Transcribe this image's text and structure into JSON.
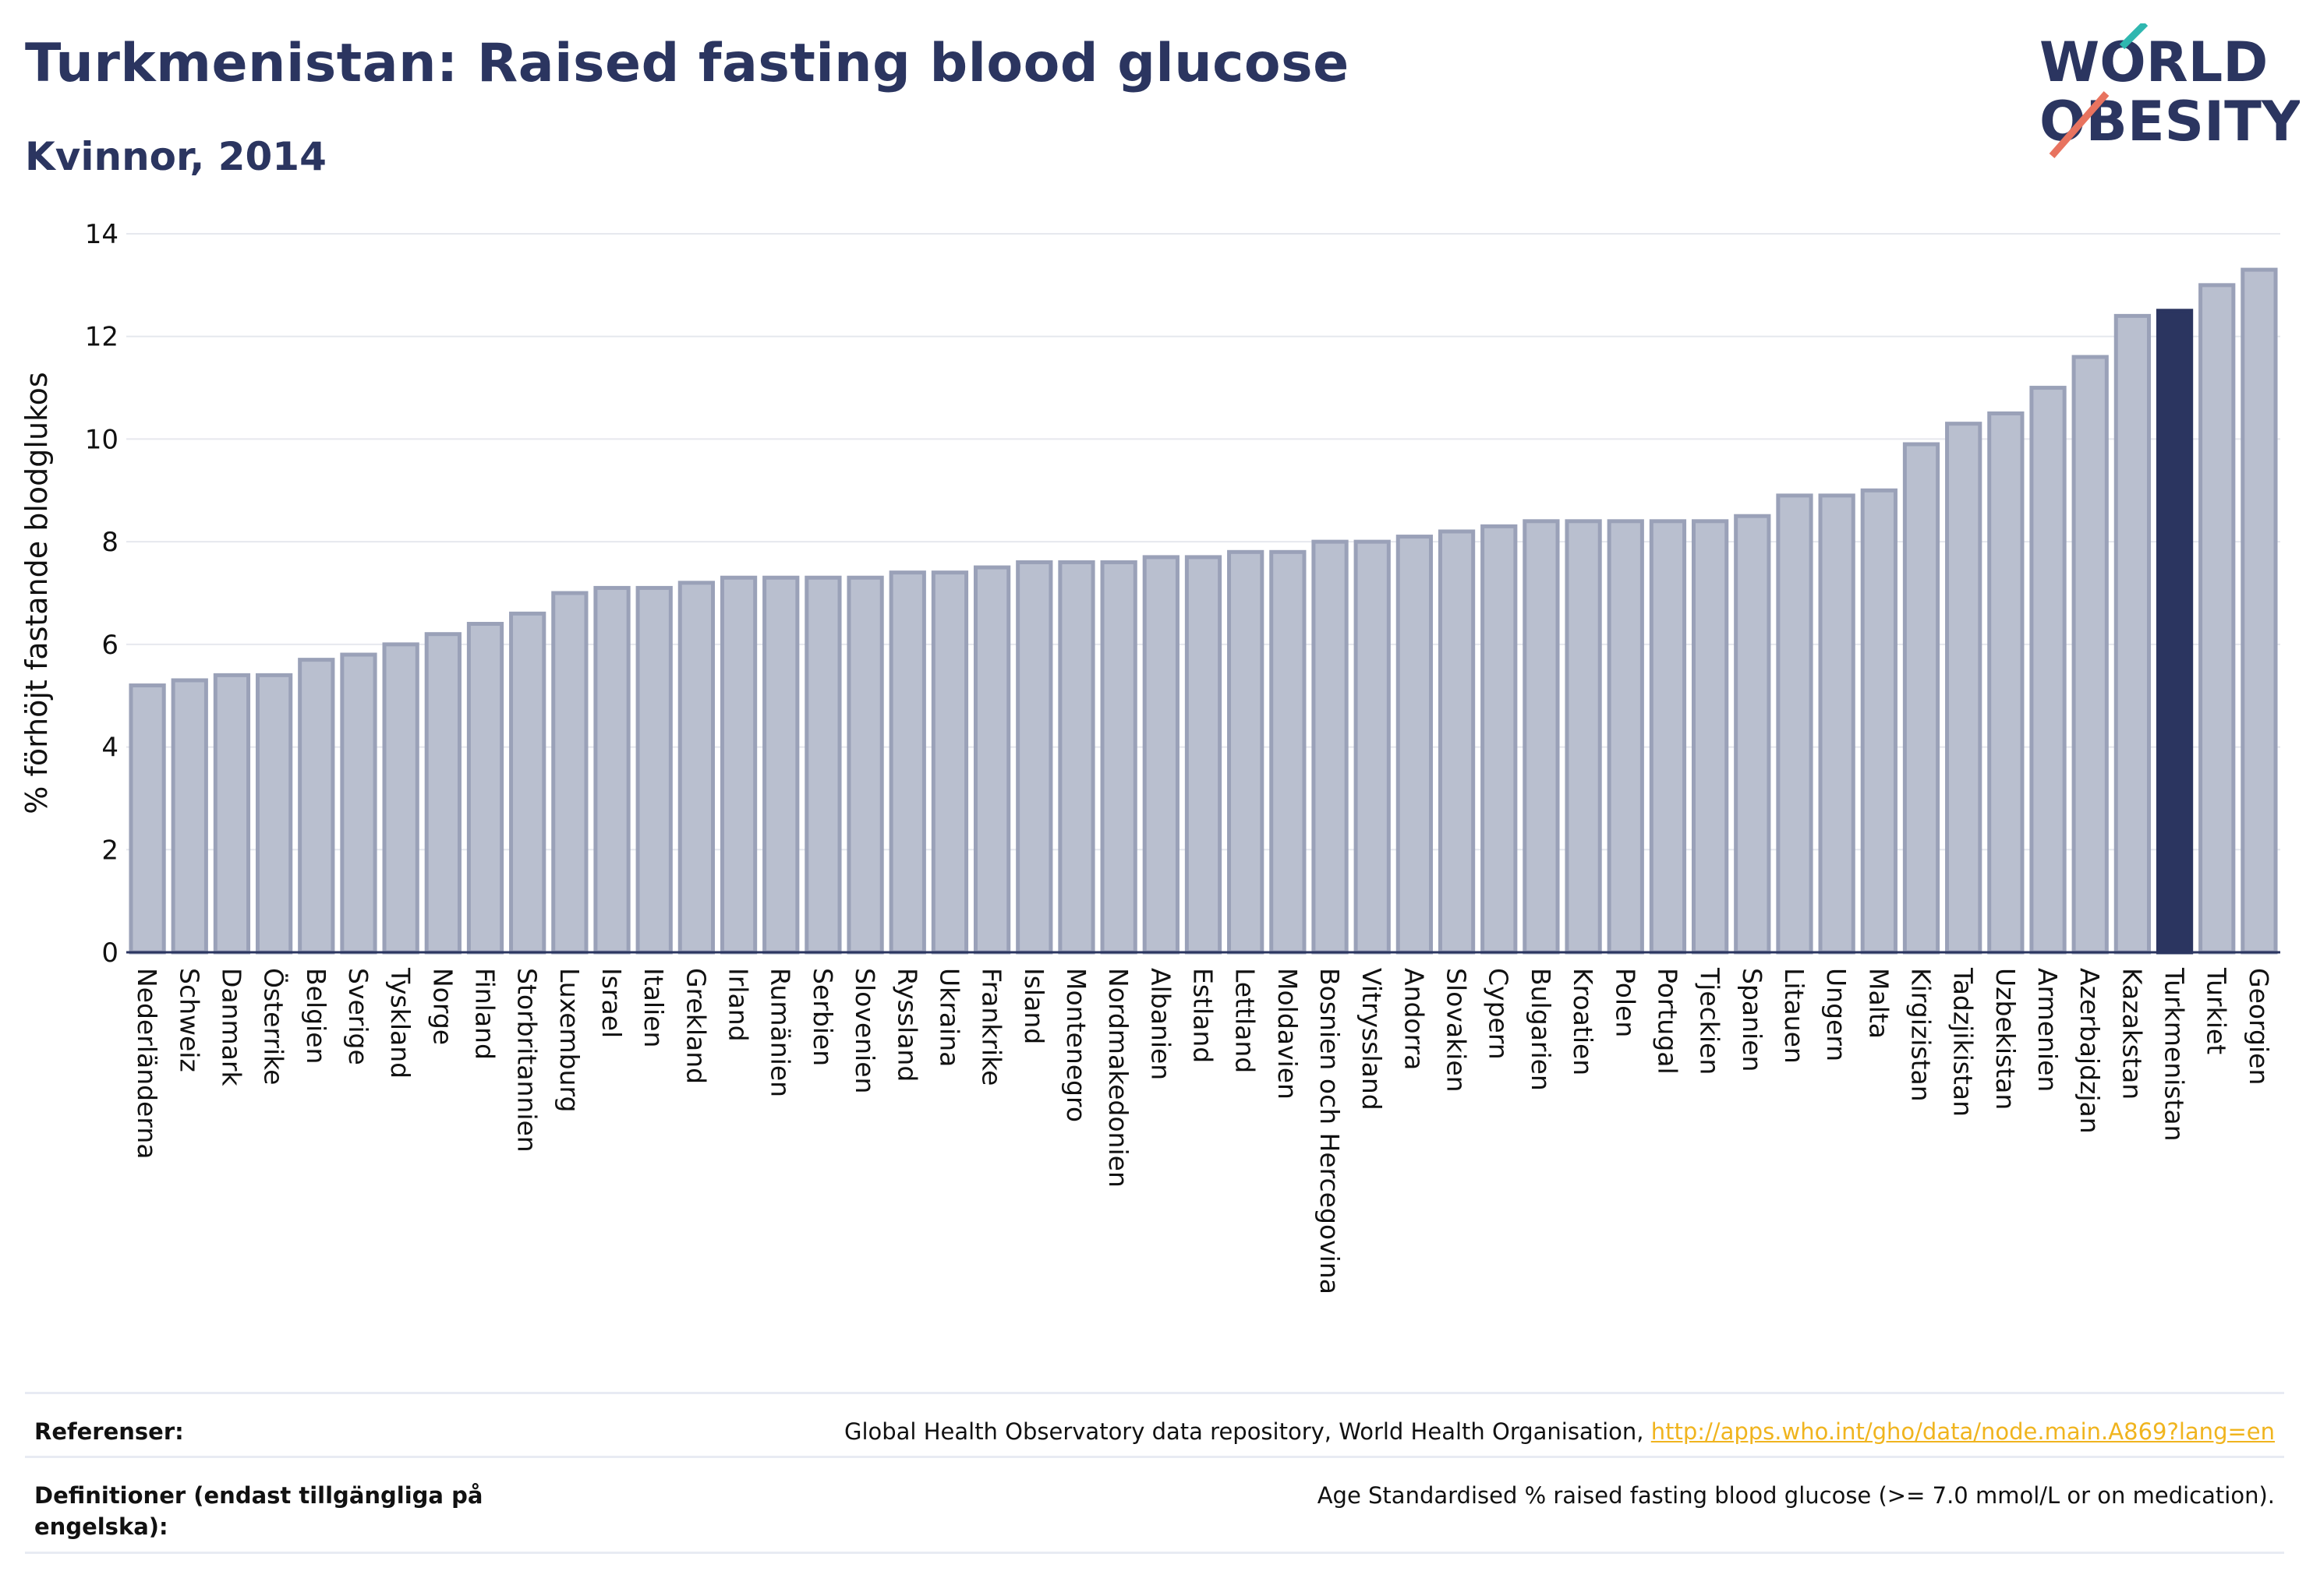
{
  "header": {
    "title": "Turkmenistan: Raised fasting blood glucose",
    "subtitle": "Kvinnor, 2014"
  },
  "logo": {
    "line1": "WORLD",
    "line2": "OBESITY"
  },
  "colors": {
    "bar": "#b9bfcf",
    "bar_border": "#9aa1b8",
    "highlight": "#2b3560",
    "text": "#2b3560",
    "link": "#f0b41e",
    "grid": "#e6e8ee"
  },
  "chart_data": {
    "type": "bar",
    "title": "Turkmenistan: Raised fasting blood glucose",
    "subtitle": "Kvinnor, 2014",
    "xlabel": "",
    "ylabel": "% förhöjt fastande blodglukos",
    "ylim": [
      0,
      14
    ],
    "yticks": [
      0,
      2,
      4,
      6,
      8,
      10,
      12,
      14
    ],
    "grid": true,
    "highlight": "Turkmenistan",
    "categories": [
      "Nederländerna",
      "Schweiz",
      "Danmark",
      "Österrike",
      "Belgien",
      "Sverige",
      "Tyskland",
      "Norge",
      "Finland",
      "Storbritannien",
      "Luxemburg",
      "Israel",
      "Italien",
      "Grekland",
      "Irland",
      "Rumänien",
      "Serbien",
      "Slovenien",
      "Ryssland",
      "Ukraina",
      "Frankrike",
      "Island",
      "Montenegro",
      "Nordmakedonien",
      "Albanien",
      "Estland",
      "Lettland",
      "Moldavien",
      "Bosnien och Hercegovina",
      "Vitryssland",
      "Andorra",
      "Slovakien",
      "Cypern",
      "Bulgarien",
      "Kroatien",
      "Polen",
      "Portugal",
      "Tjeckien",
      "Spanien",
      "Litauen",
      "Ungern",
      "Malta",
      "Kirgizistan",
      "Tadzjikistan",
      "Uzbekistan",
      "Armenien",
      "Azerbajdzjan",
      "Kazakstan",
      "Turkmenistan",
      "Turkiet",
      "Georgien"
    ],
    "values": [
      5.2,
      5.3,
      5.4,
      5.4,
      5.7,
      5.8,
      6.0,
      6.2,
      6.4,
      6.6,
      7.0,
      7.1,
      7.1,
      7.2,
      7.3,
      7.3,
      7.3,
      7.3,
      7.4,
      7.4,
      7.5,
      7.6,
      7.6,
      7.6,
      7.7,
      7.7,
      7.8,
      7.8,
      8.0,
      8.0,
      8.1,
      8.2,
      8.3,
      8.4,
      8.4,
      8.4,
      8.4,
      8.4,
      8.5,
      8.9,
      8.9,
      9.0,
      9.9,
      10.3,
      10.5,
      11.0,
      11.6,
      12.4,
      12.5,
      13.0,
      13.3
    ]
  },
  "footer": {
    "references_label": "Referenser:",
    "references_text": "Global Health Observatory data repository, World Health Organisation, ",
    "references_link": "http://apps.who.int/gho/data/node.main.A869?lang=en",
    "definitions_label": "Definitioner (endast tillgängliga på engelska):",
    "definitions_text": "Age Standardised % raised fasting blood glucose (>= 7.0 mmol/L or on medication)."
  }
}
